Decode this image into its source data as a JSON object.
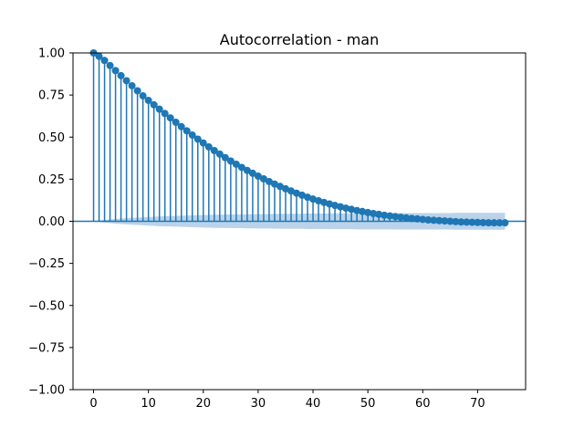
{
  "chart_data": {
    "type": "stem",
    "title": "Autocorrelation - man",
    "xlabel": "",
    "ylabel": "",
    "xlim": [
      -3.75,
      78.75
    ],
    "ylim": [
      -1.0,
      1.0
    ],
    "xticks": [
      0,
      10,
      20,
      30,
      40,
      50,
      60,
      70
    ],
    "yticks": [
      -1.0,
      -0.75,
      -0.5,
      -0.25,
      0.0,
      0.25,
      0.5,
      0.75,
      1.0
    ],
    "xtick_labels": [
      "0",
      "10",
      "20",
      "30",
      "40",
      "50",
      "60",
      "70"
    ],
    "ytick_labels": [
      "−1.00",
      "−0.75",
      "−0.50",
      "−0.25",
      "0.00",
      "0.25",
      "0.50",
      "0.75",
      "1.00"
    ],
    "grid": false,
    "colors": {
      "stem": "#1f77b4",
      "band": "#aecbe6"
    },
    "lags": [
      0,
      1,
      2,
      3,
      4,
      5,
      6,
      7,
      8,
      9,
      10,
      11,
      12,
      13,
      14,
      15,
      16,
      17,
      18,
      19,
      20,
      21,
      22,
      23,
      24,
      25,
      26,
      27,
      28,
      29,
      30,
      31,
      32,
      33,
      34,
      35,
      36,
      37,
      38,
      39,
      40,
      41,
      42,
      43,
      44,
      45,
      46,
      47,
      48,
      49,
      50,
      51,
      52,
      53,
      54,
      55,
      56,
      57,
      58,
      59,
      60,
      61,
      62,
      63,
      64,
      65,
      66,
      67,
      68,
      69,
      70,
      71,
      72,
      73,
      74,
      75
    ],
    "acf": [
      1.0,
      0.98,
      0.955,
      0.925,
      0.895,
      0.865,
      0.835,
      0.805,
      0.775,
      0.745,
      0.718,
      0.692,
      0.666,
      0.64,
      0.614,
      0.588,
      0.562,
      0.537,
      0.512,
      0.488,
      0.465,
      0.442,
      0.42,
      0.399,
      0.378,
      0.358,
      0.339,
      0.32,
      0.302,
      0.285,
      0.268,
      0.252,
      0.236,
      0.221,
      0.207,
      0.193,
      0.18,
      0.167,
      0.155,
      0.143,
      0.132,
      0.122,
      0.112,
      0.103,
      0.094,
      0.086,
      0.078,
      0.071,
      0.064,
      0.058,
      0.052,
      0.046,
      0.041,
      0.036,
      0.032,
      0.028,
      0.024,
      0.02,
      0.017,
      0.014,
      0.011,
      0.008,
      0.006,
      0.004,
      0.002,
      0.0,
      -0.002,
      -0.004,
      -0.005,
      -0.006,
      -0.007,
      -0.008,
      -0.009,
      -0.009,
      -0.009,
      -0.009
    ],
    "confidence_band": [
      0.0,
      0.005,
      0.008,
      0.011,
      0.014,
      0.016,
      0.018,
      0.02,
      0.022,
      0.024,
      0.026,
      0.027,
      0.029,
      0.03,
      0.031,
      0.032,
      0.033,
      0.034,
      0.035,
      0.036,
      0.037,
      0.038,
      0.039,
      0.039,
      0.04,
      0.04,
      0.041,
      0.041,
      0.042,
      0.042,
      0.043,
      0.043,
      0.043,
      0.044,
      0.044,
      0.044,
      0.045,
      0.045,
      0.045,
      0.046,
      0.046,
      0.046,
      0.046,
      0.047,
      0.047,
      0.047,
      0.047,
      0.047,
      0.048,
      0.048,
      0.048,
      0.048,
      0.048,
      0.048,
      0.048,
      0.049,
      0.049,
      0.049,
      0.049,
      0.049,
      0.049,
      0.049,
      0.049,
      0.049,
      0.049,
      0.049,
      0.05,
      0.05,
      0.05,
      0.05,
      0.05,
      0.05,
      0.05,
      0.05,
      0.05,
      0.05
    ]
  }
}
